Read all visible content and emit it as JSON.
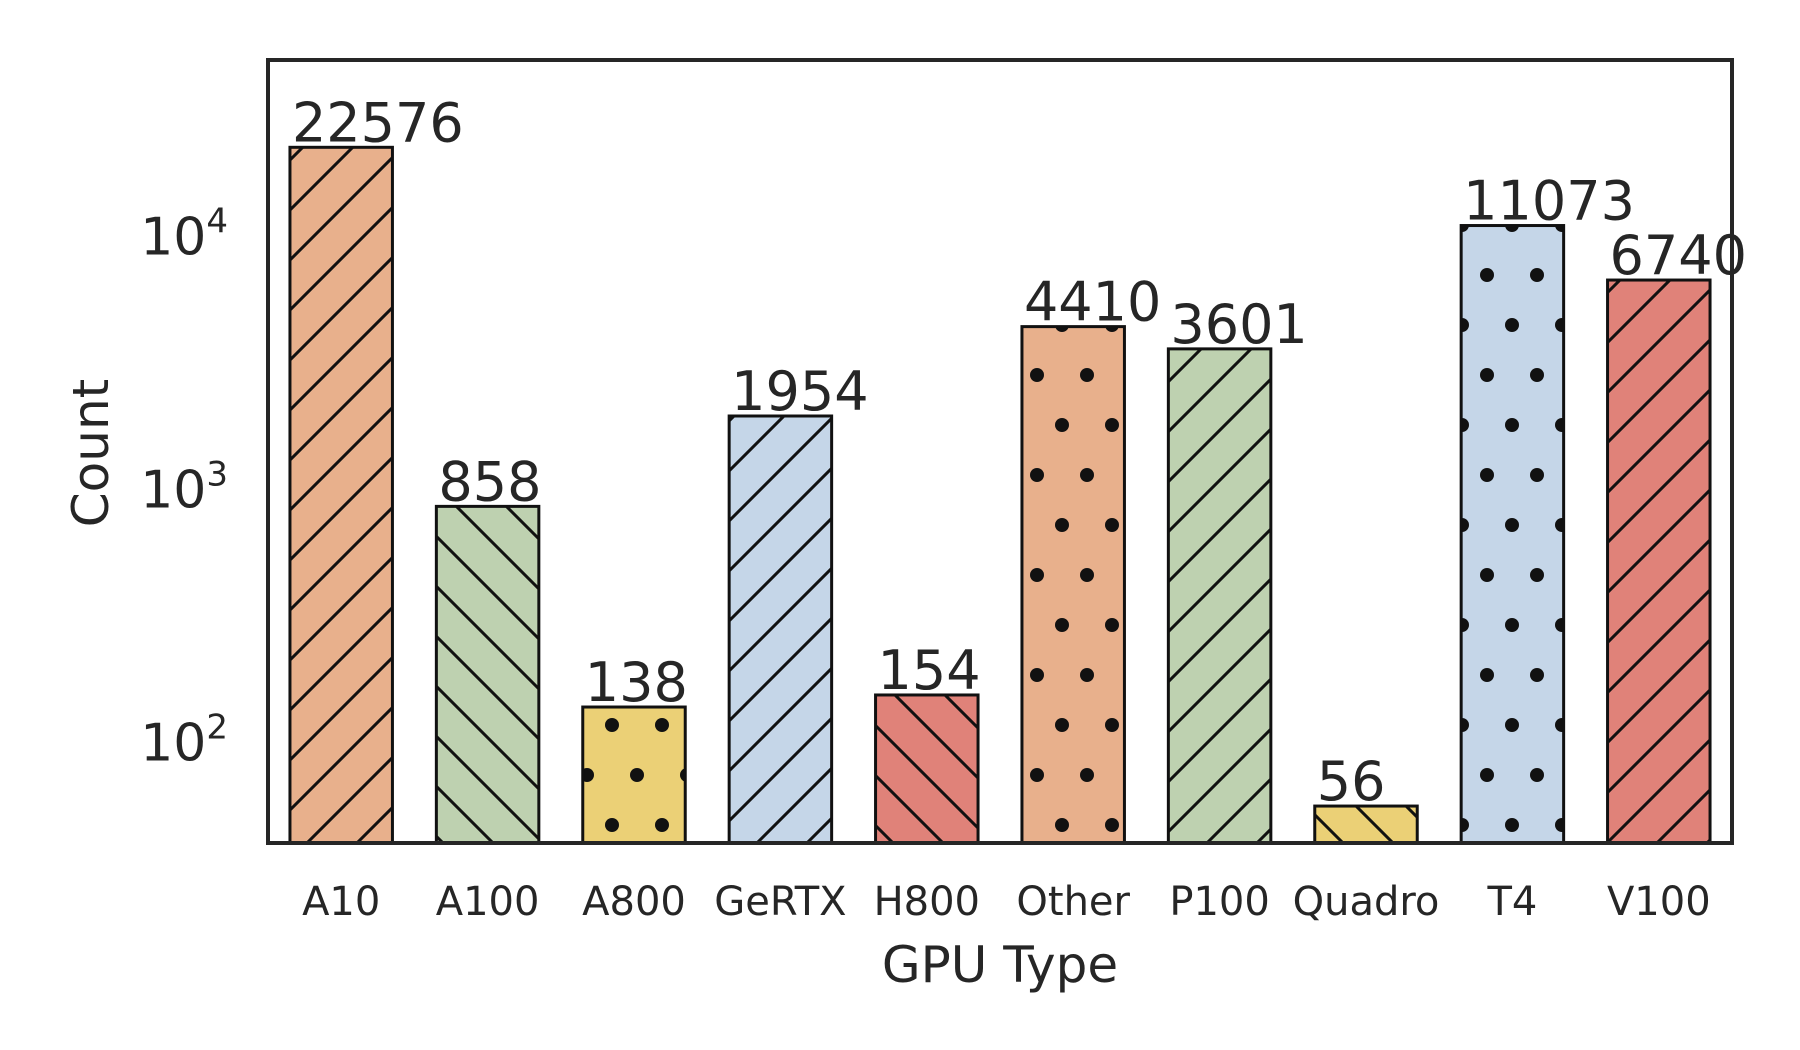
{
  "chart_data": {
    "type": "bar",
    "categories": [
      "A10",
      "A100",
      "A800",
      "GeRTX",
      "H800",
      "Other",
      "P100",
      "Quadro",
      "T4",
      "V100"
    ],
    "values": [
      22576,
      858,
      138,
      1954,
      154,
      4410,
      3601,
      56,
      11073,
      6740
    ],
    "data_labels": [
      "22576",
      "858",
      "138",
      "1954",
      "154",
      "4410",
      "3601",
      "56",
      "11073",
      "6740"
    ],
    "xlabel": "GPU Type",
    "ylabel": "Count",
    "yscale": "log",
    "ylim": [
      40,
      50000
    ],
    "yticks": [
      100,
      1000,
      10000
    ],
    "ytick_labels": [
      {
        "base": "10",
        "exp": "2"
      },
      {
        "base": "10",
        "exp": "3"
      },
      {
        "base": "10",
        "exp": "4"
      }
    ],
    "grid": false,
    "legend": "none",
    "bar_colors": [
      "#e8b08c",
      "#bed1b0",
      "#ebd076",
      "#c5d6e8",
      "#e08279",
      "#e8b08c",
      "#bed1b0",
      "#ebd076",
      "#c5d6e8",
      "#e08279"
    ],
    "bar_hatches": [
      "forward-diagonal",
      "back-diagonal",
      "dots",
      "forward-diagonal",
      "back-diagonal",
      "dots",
      "forward-diagonal",
      "back-diagonal",
      "dots",
      "forward-diagonal"
    ]
  }
}
